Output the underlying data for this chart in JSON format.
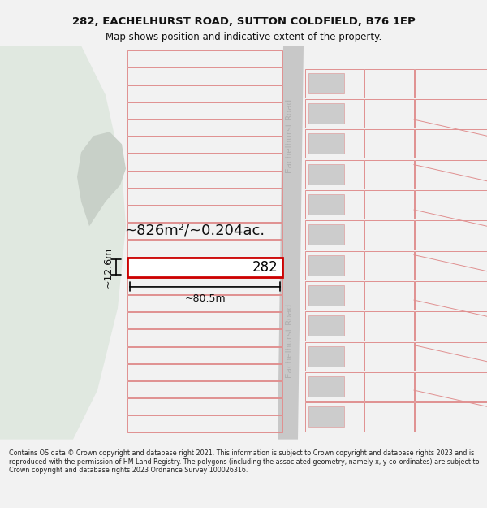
{
  "title_line1": "282, EACHELHURST ROAD, SUTTON COLDFIELD, B76 1EP",
  "title_line2": "Map shows position and indicative extent of the property.",
  "footer_text": "Contains OS data © Crown copyright and database right 2021. This information is subject to Crown copyright and database rights 2023 and is reproduced with the permission of HM Land Registry. The polygons (including the associated geometry, namely x, y co-ordinates) are subject to Crown copyright and database rights 2023 Ordnance Survey 100026316.",
  "bg_color": "#f2f2f2",
  "map_bg": "#ffffff",
  "green_color": "#e0e8e0",
  "grey_mid": "#d8d8d8",
  "plot_outline_color": "#cc0000",
  "property_number": "282",
  "area_label": "~826m²/~0.204ac.",
  "width_label": "~80.5m",
  "height_label": "~12.6m",
  "road_label": "Eachelhurst Road",
  "pink_line_color": "#e09090",
  "grey_block_color": "#cccccc",
  "road_color": "#c8c8c8",
  "title_fontsize": 9.5,
  "subtitle_fontsize": 8.5,
  "footer_fontsize": 5.8
}
